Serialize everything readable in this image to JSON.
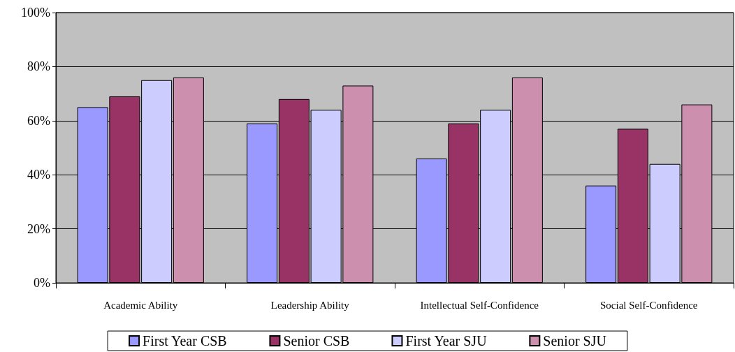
{
  "chart_data": {
    "type": "bar",
    "categories": [
      "Academic Ability",
      "Leadership Ability",
      "Intellectual Self-Confidence",
      "Social Self-Confidence"
    ],
    "series": [
      {
        "name": "First Year CSB",
        "color": "#9999ff",
        "values": [
          65,
          59,
          46,
          36
        ]
      },
      {
        "name": "Senior CSB",
        "color": "#993366",
        "values": [
          69,
          68,
          59,
          57
        ]
      },
      {
        "name": "First Year SJU",
        "color": "#ccccff",
        "values": [
          75,
          64,
          64,
          44
        ]
      },
      {
        "name": "Senior SJU",
        "color": "#cc8fad",
        "values": [
          76,
          73,
          76,
          66
        ]
      }
    ],
    "ylim": [
      0,
      100
    ],
    "yticks": [
      {
        "value": 0,
        "label": "0%"
      },
      {
        "value": 20,
        "label": "20%"
      },
      {
        "value": 40,
        "label": "40%"
      },
      {
        "value": 60,
        "label": "60%"
      },
      {
        "value": 80,
        "label": "80%"
      },
      {
        "value": 100,
        "label": "100%"
      }
    ],
    "grid": "y",
    "legend": "bottom"
  }
}
